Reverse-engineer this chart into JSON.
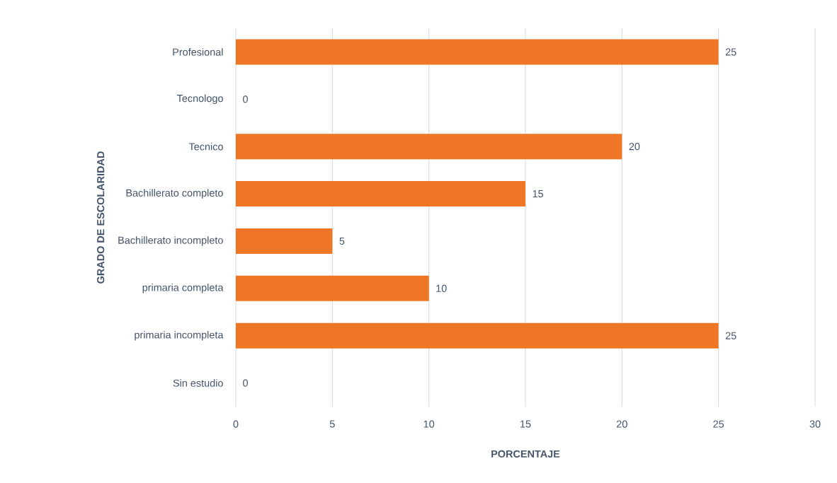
{
  "chart_data": {
    "type": "bar",
    "orientation": "horizontal",
    "xlabel": "PORCENTAJE",
    "ylabel": "GRADO DE ESCOLARIDAD",
    "categories": [
      "Profesional",
      "Tecnologo",
      "Tecnico",
      "Bachillerato completo",
      "Bachillerato incompleto",
      "primaria completa",
      "primaria incompleta",
      "Sin estudio"
    ],
    "values": [
      25,
      0,
      20,
      15,
      5,
      10,
      25,
      0
    ],
    "color": "#ee7624",
    "xlim": [
      0,
      30
    ],
    "xticks": [
      0,
      5,
      10,
      15,
      20,
      25,
      30
    ],
    "grid": "x",
    "data_labels": true
  }
}
